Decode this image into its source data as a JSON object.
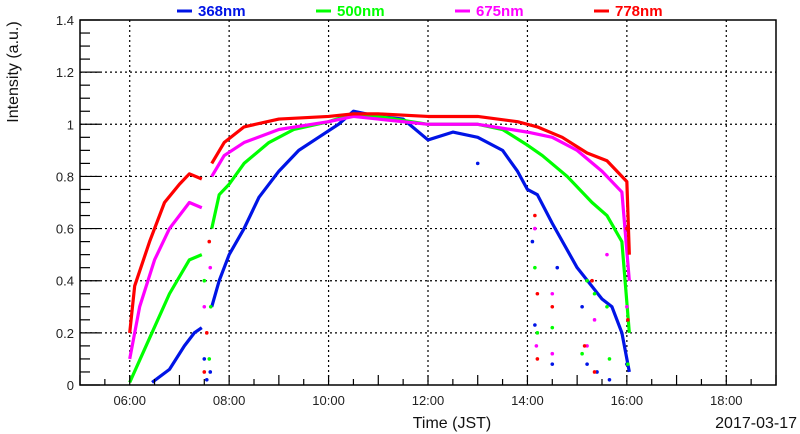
{
  "chart_data": {
    "type": "scatter",
    "title": "",
    "xlabel": "Time (JST)",
    "ylabel": "Intensity (a.u.)",
    "date_label": "2017-03-17",
    "xlim": [
      5,
      19
    ],
    "ylim": [
      0,
      1.4
    ],
    "grid": true,
    "legend_placement": "top",
    "x_ticks": [
      {
        "value": 6,
        "label": "06:00"
      },
      {
        "value": 8,
        "label": "08:00"
      },
      {
        "value": 10,
        "label": "10:00"
      },
      {
        "value": 12,
        "label": "12:00"
      },
      {
        "value": 14,
        "label": "14:00"
      },
      {
        "value": 16,
        "label": "16:00"
      },
      {
        "value": 18,
        "label": "18:00"
      }
    ],
    "y_ticks": [
      {
        "value": 0,
        "label": "0"
      },
      {
        "value": 0.2,
        "label": "0.2"
      },
      {
        "value": 0.4,
        "label": "0.4"
      },
      {
        "value": 0.6,
        "label": "0.6"
      },
      {
        "value": 0.8,
        "label": "0.8"
      },
      {
        "value": 1.0,
        "label": "1"
      },
      {
        "value": 1.2,
        "label": "1.2"
      },
      {
        "value": 1.4,
        "label": "1.4"
      }
    ],
    "series": [
      {
        "name": "368nm",
        "color": "#0014e6",
        "segments": [
          [
            [
              6.45,
              0.01
            ],
            [
              6.8,
              0.06
            ],
            [
              7.1,
              0.15
            ],
            [
              7.3,
              0.2
            ],
            [
              7.45,
              0.22
            ]
          ],
          [
            [
              7.65,
              0.3
            ],
            [
              7.8,
              0.4
            ],
            [
              8.0,
              0.5
            ],
            [
              8.3,
              0.6
            ],
            [
              8.6,
              0.72
            ],
            [
              9.0,
              0.82
            ],
            [
              9.4,
              0.9
            ],
            [
              9.8,
              0.95
            ],
            [
              10.2,
              1.0
            ],
            [
              10.5,
              1.05
            ],
            [
              11.0,
              1.03
            ],
            [
              11.5,
              1.02
            ],
            [
              12.0,
              0.94
            ],
            [
              12.5,
              0.97
            ],
            [
              13.0,
              0.95
            ],
            [
              13.5,
              0.9
            ],
            [
              13.8,
              0.82
            ],
            [
              14.0,
              0.75
            ],
            [
              14.2,
              0.73
            ],
            [
              14.5,
              0.62
            ],
            [
              15.0,
              0.45
            ],
            [
              15.5,
              0.33
            ],
            [
              15.7,
              0.3
            ],
            [
              15.9,
              0.2
            ],
            [
              16.05,
              0.05
            ]
          ]
        ],
        "dips": [
          [
            7.5,
            0.1
          ],
          [
            7.55,
            0.02
          ],
          [
            7.62,
            0.05
          ],
          [
            13.0,
            0.85
          ],
          [
            14.1,
            0.55
          ],
          [
            14.15,
            0.23
          ],
          [
            14.5,
            0.08
          ],
          [
            14.6,
            0.45
          ],
          [
            15.1,
            0.3
          ],
          [
            15.2,
            0.08
          ],
          [
            15.4,
            0.05
          ],
          [
            15.65,
            0.02
          ],
          [
            16.0,
            0.08
          ]
        ]
      },
      {
        "name": "500nm",
        "color": "#00ff00",
        "segments": [
          [
            [
              6.0,
              0.01
            ],
            [
              6.4,
              0.18
            ],
            [
              6.8,
              0.35
            ],
            [
              7.2,
              0.48
            ],
            [
              7.45,
              0.5
            ]
          ],
          [
            [
              7.65,
              0.6
            ],
            [
              7.8,
              0.73
            ],
            [
              8.0,
              0.77
            ],
            [
              8.3,
              0.85
            ],
            [
              8.8,
              0.93
            ],
            [
              9.3,
              0.98
            ],
            [
              10.0,
              1.01
            ],
            [
              10.5,
              1.04
            ],
            [
              11.0,
              1.03
            ],
            [
              12.0,
              1.0
            ],
            [
              13.0,
              1.0
            ],
            [
              13.5,
              0.98
            ],
            [
              14.0,
              0.92
            ],
            [
              14.3,
              0.88
            ],
            [
              14.8,
              0.8
            ],
            [
              15.3,
              0.7
            ],
            [
              15.6,
              0.65
            ],
            [
              15.9,
              0.55
            ],
            [
              16.05,
              0.2
            ]
          ]
        ],
        "dips": [
          [
            7.5,
            0.4
          ],
          [
            7.6,
            0.1
          ],
          [
            7.63,
            0.3
          ],
          [
            14.15,
            0.45
          ],
          [
            14.2,
            0.2
          ],
          [
            14.5,
            0.22
          ],
          [
            15.1,
            0.12
          ],
          [
            15.2,
            0.4
          ],
          [
            15.35,
            0.35
          ],
          [
            15.6,
            0.3
          ],
          [
            15.65,
            0.1
          ],
          [
            16.02,
            0.08
          ]
        ]
      },
      {
        "name": "675nm",
        "color": "#ff00ff",
        "segments": [
          [
            [
              6.0,
              0.1
            ],
            [
              6.2,
              0.3
            ],
            [
              6.5,
              0.48
            ],
            [
              6.8,
              0.6
            ],
            [
              7.2,
              0.7
            ],
            [
              7.45,
              0.68
            ]
          ],
          [
            [
              7.65,
              0.8
            ],
            [
              7.9,
              0.88
            ],
            [
              8.3,
              0.93
            ],
            [
              9.0,
              0.98
            ],
            [
              10.0,
              1.01
            ],
            [
              10.5,
              1.03
            ],
            [
              11.0,
              1.02
            ],
            [
              12.0,
              1.0
            ],
            [
              13.0,
              1.0
            ],
            [
              14.0,
              0.97
            ],
            [
              14.5,
              0.95
            ],
            [
              15.0,
              0.9
            ],
            [
              15.5,
              0.82
            ],
            [
              15.9,
              0.74
            ],
            [
              16.05,
              0.4
            ]
          ]
        ],
        "dips": [
          [
            7.5,
            0.3
          ],
          [
            7.62,
            0.45
          ],
          [
            14.15,
            0.6
          ],
          [
            14.18,
            0.15
          ],
          [
            14.5,
            0.35
          ],
          [
            14.5,
            0.12
          ],
          [
            15.2,
            0.15
          ],
          [
            15.35,
            0.25
          ],
          [
            15.6,
            0.5
          ],
          [
            16.0,
            0.3
          ]
        ]
      },
      {
        "name": "778nm",
        "color": "#ff0000",
        "segments": [
          [
            [
              6.0,
              0.2
            ],
            [
              6.1,
              0.38
            ],
            [
              6.4,
              0.55
            ],
            [
              6.7,
              0.7
            ],
            [
              7.0,
              0.77
            ],
            [
              7.2,
              0.81
            ],
            [
              7.45,
              0.79
            ]
          ],
          [
            [
              7.65,
              0.85
            ],
            [
              7.9,
              0.93
            ],
            [
              8.3,
              0.99
            ],
            [
              9.0,
              1.02
            ],
            [
              10.0,
              1.03
            ],
            [
              10.5,
              1.04
            ],
            [
              11.0,
              1.04
            ],
            [
              12.0,
              1.03
            ],
            [
              13.0,
              1.03
            ],
            [
              13.8,
              1.01
            ],
            [
              14.2,
              0.99
            ],
            [
              14.7,
              0.95
            ],
            [
              15.2,
              0.89
            ],
            [
              15.6,
              0.86
            ],
            [
              16.0,
              0.78
            ],
            [
              16.05,
              0.5
            ]
          ]
        ],
        "dips": [
          [
            7.5,
            0.05
          ],
          [
            7.55,
            0.2
          ],
          [
            7.6,
            0.55
          ],
          [
            14.15,
            0.65
          ],
          [
            14.2,
            0.35
          ],
          [
            14.2,
            0.1
          ],
          [
            14.5,
            0.3
          ],
          [
            15.15,
            0.15
          ],
          [
            15.3,
            0.4
          ],
          [
            15.35,
            0.05
          ],
          [
            16.0,
            0.6
          ],
          [
            16.02,
            0.25
          ]
        ]
      }
    ]
  }
}
